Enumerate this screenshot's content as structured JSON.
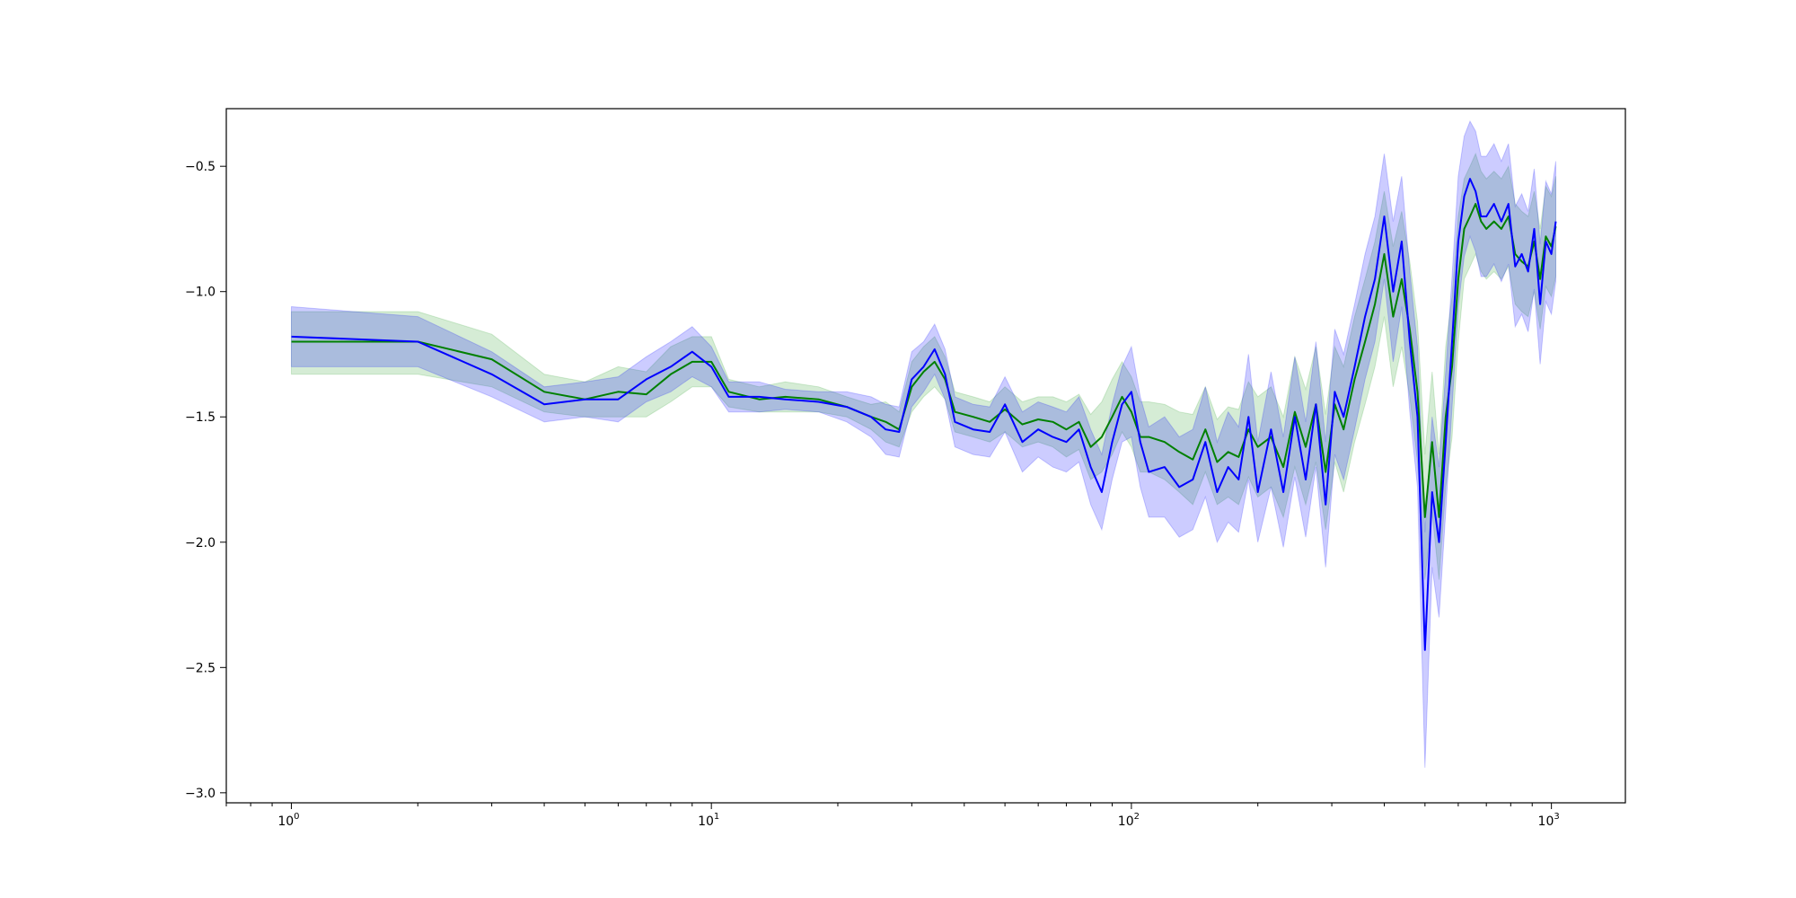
{
  "chart_data": {
    "type": "line",
    "title": "",
    "xlabel": "",
    "ylabel": "",
    "xscale": "log",
    "xlim": [
      0.7,
      1500
    ],
    "ylim": [
      -3.04,
      -0.27
    ],
    "grid": false,
    "legend": "none",
    "x_ticks": [
      {
        "value": 1,
        "base": "10",
        "exp": "0"
      },
      {
        "value": 10,
        "base": "10",
        "exp": "1"
      },
      {
        "value": 100,
        "base": "10",
        "exp": "2"
      },
      {
        "value": 1000,
        "base": "10",
        "exp": "3"
      }
    ],
    "y_ticks": [
      {
        "value": -0.5,
        "label": "−0.5"
      },
      {
        "value": -1.0,
        "label": "−1.0"
      },
      {
        "value": -1.5,
        "label": "−1.5"
      },
      {
        "value": -2.0,
        "label": "−2.0"
      },
      {
        "value": -2.5,
        "label": "−2.5"
      },
      {
        "value": -3.0,
        "label": "−3.0"
      }
    ],
    "series": [
      {
        "color": "#008000",
        "band_color": "#2ca02c",
        "x": [
          1,
          2,
          3,
          4,
          5,
          6,
          7,
          8,
          9,
          10,
          11,
          13,
          15,
          18,
          21,
          24,
          26,
          28,
          30,
          32,
          34,
          36,
          38,
          42,
          46,
          50,
          55,
          60,
          65,
          70,
          75,
          80,
          85,
          90,
          95,
          100,
          105,
          110,
          120,
          130,
          140,
          150,
          160,
          170,
          180,
          190,
          200,
          215,
          230,
          245,
          260,
          275,
          290,
          305,
          320,
          340,
          360,
          380,
          400,
          420,
          440,
          460,
          480,
          500,
          520,
          540,
          560,
          580,
          600,
          620,
          640,
          660,
          680,
          700,
          730,
          760,
          790,
          820,
          850,
          880,
          910,
          940,
          970,
          1000,
          1024
        ],
        "y": [
          -1.2,
          -1.2,
          -1.27,
          -1.4,
          -1.43,
          -1.4,
          -1.41,
          -1.33,
          -1.28,
          -1.28,
          -1.4,
          -1.43,
          -1.42,
          -1.43,
          -1.46,
          -1.5,
          -1.52,
          -1.55,
          -1.38,
          -1.32,
          -1.28,
          -1.35,
          -1.48,
          -1.5,
          -1.52,
          -1.47,
          -1.53,
          -1.51,
          -1.52,
          -1.55,
          -1.52,
          -1.62,
          -1.58,
          -1.5,
          -1.42,
          -1.48,
          -1.58,
          -1.58,
          -1.6,
          -1.64,
          -1.67,
          -1.55,
          -1.68,
          -1.64,
          -1.66,
          -1.55,
          -1.62,
          -1.58,
          -1.7,
          -1.48,
          -1.62,
          -1.45,
          -1.72,
          -1.45,
          -1.55,
          -1.35,
          -1.2,
          -1.05,
          -0.85,
          -1.1,
          -0.95,
          -1.15,
          -1.4,
          -1.9,
          -1.6,
          -1.9,
          -1.5,
          -1.3,
          -0.95,
          -0.75,
          -0.7,
          -0.65,
          -0.72,
          -0.75,
          -0.72,
          -0.75,
          -0.7,
          -0.85,
          -0.88,
          -0.9,
          -0.8,
          -0.95,
          -0.78,
          -0.82,
          -0.74
        ],
        "lower": [
          -1.33,
          -1.33,
          -1.38,
          -1.48,
          -1.5,
          -1.5,
          -1.5,
          -1.44,
          -1.38,
          -1.38,
          -1.46,
          -1.48,
          -1.48,
          -1.48,
          -1.5,
          -1.55,
          -1.6,
          -1.62,
          -1.48,
          -1.42,
          -1.38,
          -1.43,
          -1.56,
          -1.58,
          -1.6,
          -1.56,
          -1.62,
          -1.6,
          -1.62,
          -1.66,
          -1.63,
          -1.75,
          -1.72,
          -1.65,
          -1.56,
          -1.62,
          -1.72,
          -1.72,
          -1.75,
          -1.8,
          -1.85,
          -1.72,
          -1.85,
          -1.82,
          -1.85,
          -1.74,
          -1.82,
          -1.78,
          -1.9,
          -1.7,
          -1.85,
          -1.68,
          -1.95,
          -1.68,
          -1.8,
          -1.6,
          -1.45,
          -1.3,
          -1.1,
          -1.38,
          -1.22,
          -1.42,
          -1.68,
          -2.15,
          -1.88,
          -2.15,
          -1.78,
          -1.58,
          -1.2,
          -0.95,
          -0.9,
          -0.85,
          -0.92,
          -0.95,
          -0.92,
          -0.95,
          -0.9,
          -1.05,
          -1.08,
          -1.1,
          -1.0,
          -1.15,
          -0.98,
          -1.02,
          -0.94
        ],
        "upper": [
          -1.08,
          -1.08,
          -1.17,
          -1.33,
          -1.36,
          -1.3,
          -1.32,
          -1.22,
          -1.18,
          -1.18,
          -1.35,
          -1.38,
          -1.36,
          -1.38,
          -1.42,
          -1.45,
          -1.44,
          -1.48,
          -1.28,
          -1.22,
          -1.18,
          -1.26,
          -1.4,
          -1.42,
          -1.44,
          -1.38,
          -1.44,
          -1.42,
          -1.42,
          -1.44,
          -1.41,
          -1.49,
          -1.44,
          -1.35,
          -1.28,
          -1.34,
          -1.44,
          -1.44,
          -1.45,
          -1.48,
          -1.49,
          -1.38,
          -1.51,
          -1.46,
          -1.47,
          -1.36,
          -1.42,
          -1.38,
          -1.5,
          -1.26,
          -1.39,
          -1.22,
          -1.49,
          -1.22,
          -1.3,
          -1.1,
          -0.95,
          -0.8,
          -0.6,
          -0.82,
          -0.68,
          -0.88,
          -1.12,
          -1.65,
          -1.32,
          -1.65,
          -1.22,
          -1.02,
          -0.7,
          -0.55,
          -0.5,
          -0.45,
          -0.52,
          -0.55,
          -0.52,
          -0.55,
          -0.5,
          -0.65,
          -0.68,
          -0.7,
          -0.6,
          -0.75,
          -0.58,
          -0.62,
          -0.54
        ]
      },
      {
        "color": "#0000ff",
        "band_color": "#0000ff",
        "x": [
          1,
          2,
          3,
          4,
          5,
          6,
          7,
          8,
          9,
          10,
          11,
          13,
          15,
          18,
          21,
          24,
          26,
          28,
          30,
          32,
          34,
          36,
          38,
          42,
          46,
          50,
          55,
          60,
          65,
          70,
          75,
          80,
          85,
          90,
          95,
          100,
          105,
          110,
          120,
          130,
          140,
          150,
          160,
          170,
          180,
          190,
          200,
          215,
          230,
          245,
          260,
          275,
          290,
          305,
          320,
          340,
          360,
          380,
          400,
          420,
          440,
          460,
          480,
          500,
          520,
          540,
          560,
          580,
          600,
          620,
          640,
          660,
          680,
          700,
          730,
          760,
          790,
          820,
          850,
          880,
          910,
          940,
          970,
          1000,
          1024
        ],
        "y": [
          -1.18,
          -1.2,
          -1.33,
          -1.45,
          -1.43,
          -1.43,
          -1.35,
          -1.3,
          -1.24,
          -1.3,
          -1.42,
          -1.42,
          -1.43,
          -1.44,
          -1.46,
          -1.5,
          -1.55,
          -1.56,
          -1.35,
          -1.3,
          -1.23,
          -1.33,
          -1.52,
          -1.55,
          -1.56,
          -1.45,
          -1.6,
          -1.55,
          -1.58,
          -1.6,
          -1.55,
          -1.7,
          -1.8,
          -1.6,
          -1.45,
          -1.4,
          -1.6,
          -1.72,
          -1.7,
          -1.78,
          -1.75,
          -1.6,
          -1.8,
          -1.7,
          -1.75,
          -1.5,
          -1.8,
          -1.55,
          -1.8,
          -1.5,
          -1.75,
          -1.45,
          -1.85,
          -1.4,
          -1.5,
          -1.3,
          -1.1,
          -0.95,
          -0.7,
          -1.0,
          -0.8,
          -1.2,
          -1.5,
          -2.43,
          -1.8,
          -2.0,
          -1.6,
          -1.2,
          -0.8,
          -0.62,
          -0.55,
          -0.6,
          -0.7,
          -0.7,
          -0.65,
          -0.72,
          -0.65,
          -0.9,
          -0.85,
          -0.92,
          -0.75,
          -1.05,
          -0.8,
          -0.85,
          -0.72
        ],
        "lower": [
          -1.3,
          -1.3,
          -1.42,
          -1.52,
          -1.5,
          -1.52,
          -1.44,
          -1.4,
          -1.34,
          -1.38,
          -1.48,
          -1.48,
          -1.47,
          -1.48,
          -1.52,
          -1.58,
          -1.65,
          -1.66,
          -1.46,
          -1.4,
          -1.33,
          -1.43,
          -1.62,
          -1.65,
          -1.66,
          -1.56,
          -1.72,
          -1.66,
          -1.7,
          -1.72,
          -1.68,
          -1.85,
          -1.95,
          -1.75,
          -1.6,
          -1.58,
          -1.78,
          -1.9,
          -1.9,
          -1.98,
          -1.95,
          -1.82,
          -2.0,
          -1.92,
          -1.96,
          -1.75,
          -2.0,
          -1.78,
          -2.02,
          -1.74,
          -1.98,
          -1.7,
          -2.1,
          -1.65,
          -1.75,
          -1.55,
          -1.35,
          -1.2,
          -0.95,
          -1.28,
          -1.06,
          -1.48,
          -1.78,
          -2.9,
          -2.1,
          -2.3,
          -1.88,
          -1.46,
          -1.06,
          -0.86,
          -0.78,
          -0.84,
          -0.94,
          -0.94,
          -0.89,
          -0.96,
          -0.89,
          -1.14,
          -1.09,
          -1.16,
          -0.99,
          -1.29,
          -1.04,
          -1.09,
          -0.96
        ],
        "upper": [
          -1.06,
          -1.1,
          -1.24,
          -1.38,
          -1.36,
          -1.34,
          -1.26,
          -1.2,
          -1.14,
          -1.22,
          -1.36,
          -1.36,
          -1.39,
          -1.4,
          -1.4,
          -1.42,
          -1.45,
          -1.46,
          -1.24,
          -1.2,
          -1.13,
          -1.23,
          -1.42,
          -1.45,
          -1.46,
          -1.34,
          -1.48,
          -1.44,
          -1.46,
          -1.48,
          -1.42,
          -1.55,
          -1.65,
          -1.45,
          -1.3,
          -1.22,
          -1.42,
          -1.54,
          -1.5,
          -1.58,
          -1.55,
          -1.38,
          -1.6,
          -1.48,
          -1.54,
          -1.25,
          -1.6,
          -1.32,
          -1.58,
          -1.26,
          -1.52,
          -1.2,
          -1.6,
          -1.15,
          -1.25,
          -1.05,
          -0.85,
          -0.7,
          -0.45,
          -0.72,
          -0.54,
          -0.92,
          -1.22,
          -1.96,
          -1.5,
          -1.7,
          -1.32,
          -0.94,
          -0.54,
          -0.38,
          -0.32,
          -0.36,
          -0.46,
          -0.46,
          -0.41,
          -0.48,
          -0.41,
          -0.66,
          -0.61,
          -0.68,
          -0.51,
          -0.81,
          -0.56,
          -0.61,
          -0.48
        ]
      }
    ]
  }
}
